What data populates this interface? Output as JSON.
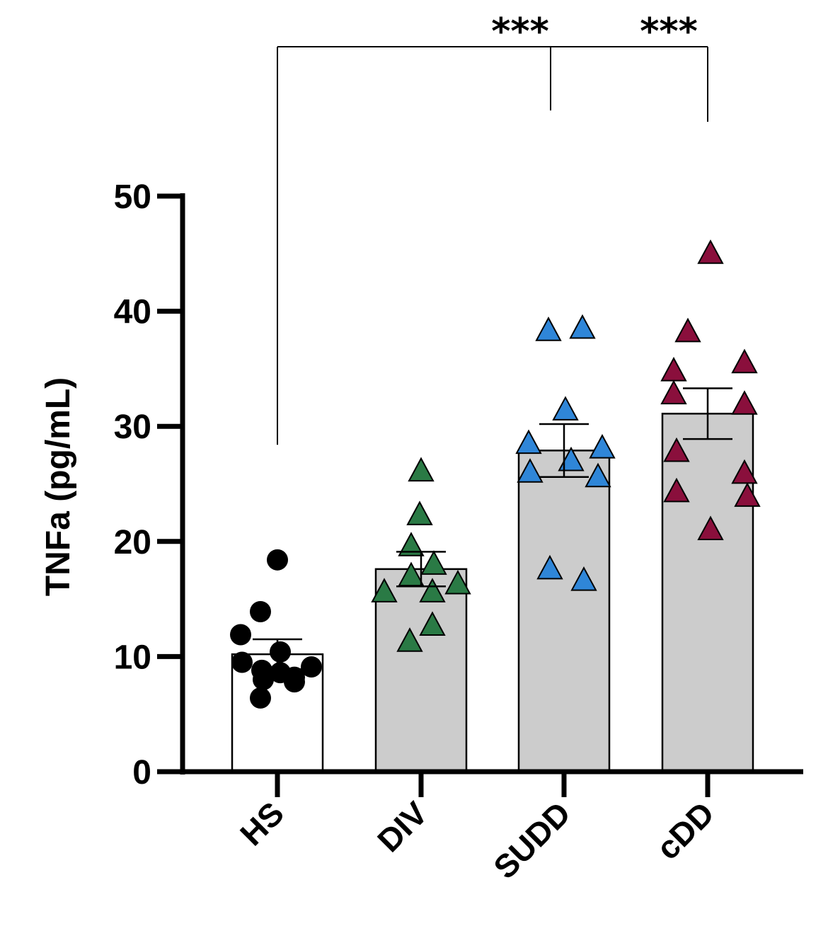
{
  "chart_data": {
    "type": "bar",
    "title": "",
    "xlabel": "",
    "ylabel": "TNFa (pg/mL)",
    "ylim": [
      0,
      50
    ],
    "yticks": [
      "0",
      "10",
      "20",
      "30",
      "40",
      "50"
    ],
    "categories": [
      "HS",
      "DIV",
      "SUDD",
      "cDD"
    ],
    "bar_values": [
      10.2,
      17.6,
      27.9,
      31.1
    ],
    "error_values": [
      1.3,
      1.5,
      2.3,
      2.2
    ],
    "series": [
      {
        "name": "HS",
        "marker": "circle",
        "color": "#000000",
        "fill": "#ffffff",
        "points": [
          18.4,
          13.9,
          11.9,
          10.4,
          9.5,
          9.1,
          8.8,
          8.6,
          8.2,
          8.0,
          7.8,
          6.4
        ]
      },
      {
        "name": "DIV",
        "marker": "triangle",
        "color": "#2a7a45",
        "fill": "#cccccc",
        "points": [
          26.1,
          22.3,
          19.6,
          18.0,
          17.0,
          16.3,
          15.6,
          15.6,
          12.7,
          11.3
        ]
      },
      {
        "name": "SUDD",
        "marker": "triangle",
        "color": "#2f86d8",
        "fill": "#cccccc",
        "points": [
          38.3,
          38.5,
          31.4,
          28.5,
          28.1,
          27.0,
          26.0,
          25.6,
          17.6,
          16.6
        ]
      },
      {
        "name": "cDD",
        "marker": "triangle",
        "color": "#8a0f3c",
        "fill": "#cccccc",
        "points": [
          45.0,
          38.2,
          35.5,
          34.8,
          32.8,
          31.9,
          27.8,
          25.9,
          24.3,
          23.9,
          21.0
        ]
      }
    ],
    "significance": [
      {
        "from": "HS",
        "to": "SUDD",
        "label": "***"
      },
      {
        "from": "HS",
        "to": "cDD",
        "label": "***"
      }
    ]
  }
}
